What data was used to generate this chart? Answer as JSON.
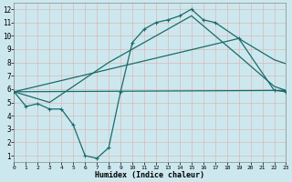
{
  "xlabel": "Humidex (Indice chaleur)",
  "xlim": [
    0,
    23
  ],
  "ylim": [
    0.5,
    12.5
  ],
  "xticks": [
    0,
    1,
    2,
    3,
    4,
    5,
    6,
    7,
    8,
    9,
    10,
    11,
    12,
    13,
    14,
    15,
    16,
    17,
    18,
    19,
    20,
    21,
    22,
    23
  ],
  "yticks": [
    1,
    2,
    3,
    4,
    5,
    6,
    7,
    8,
    9,
    10,
    11,
    12
  ],
  "bg_color": "#cce8ee",
  "grid_color": "#dbb8b8",
  "line_color": "#1a6b6b",
  "line1_x": [
    0,
    1,
    2,
    3,
    4,
    5,
    6,
    7,
    8,
    9,
    10,
    11,
    12,
    13,
    14,
    15,
    16,
    17,
    19,
    22,
    23
  ],
  "line1_y": [
    5.8,
    4.7,
    4.9,
    4.5,
    4.5,
    3.3,
    1.0,
    0.8,
    1.6,
    5.8,
    9.5,
    10.5,
    11.0,
    11.2,
    11.5,
    12.0,
    11.2,
    11.0,
    9.8,
    5.9,
    5.8
  ],
  "line2_x": [
    0,
    3,
    8,
    15,
    19,
    22,
    23
  ],
  "line2_y": [
    5.8,
    5.0,
    8.0,
    11.5,
    8.5,
    6.2,
    5.9
  ],
  "line3_x": [
    0,
    19,
    22,
    23
  ],
  "line3_y": [
    5.8,
    9.8,
    8.2,
    7.9
  ],
  "line4_x": [
    0,
    23
  ],
  "line4_y": [
    5.8,
    5.9
  ]
}
